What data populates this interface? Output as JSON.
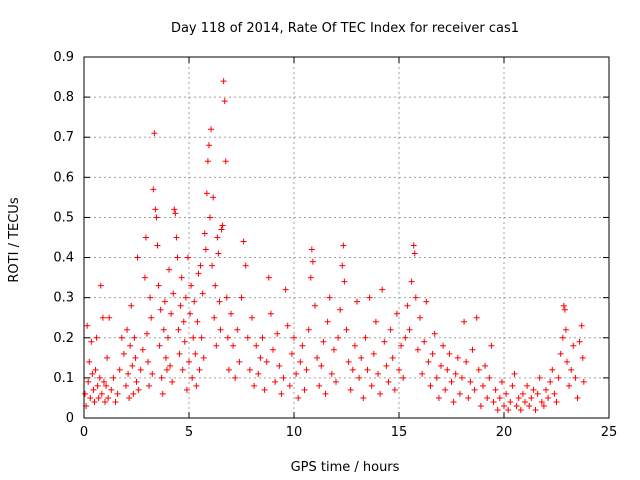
{
  "chart_data": {
    "type": "scatter",
    "title": "Day 118 of 2014, Rate Of TEC Index for receiver cas1",
    "xlabel": "GPS time / hours",
    "ylabel": "ROTI / TECUs",
    "xlim": [
      0,
      25
    ],
    "ylim": [
      0,
      0.9
    ],
    "xticks": [
      0,
      5,
      10,
      15,
      20,
      25
    ],
    "xtick_labels": [
      "0",
      "5",
      "10",
      "15",
      "20",
      "25"
    ],
    "yticks": [
      0,
      0.1,
      0.2,
      0.3,
      0.4,
      0.5,
      0.6,
      0.7,
      0.8,
      0.9
    ],
    "ytick_labels": [
      "0",
      "0.1",
      "0.2",
      "0.3",
      "0.4",
      "0.5",
      "0.6",
      "0.7",
      "0.8",
      "0.9"
    ],
    "grid": true,
    "marker": "plus",
    "series": [
      {
        "name": "ROTI",
        "color": "#ff0000",
        "points": [
          [
            0.05,
            0.06
          ],
          [
            0.1,
            0.03
          ],
          [
            0.15,
            0.23
          ],
          [
            0.2,
            0.09
          ],
          [
            0.25,
            0.14
          ],
          [
            0.3,
            0.05
          ],
          [
            0.35,
            0.19
          ],
          [
            0.4,
            0.11
          ],
          [
            0.45,
            0.07
          ],
          [
            0.5,
            0.04
          ],
          [
            0.55,
            0.12
          ],
          [
            0.6,
            0.2
          ],
          [
            0.65,
            0.08
          ],
          [
            0.7,
            0.05
          ],
          [
            0.75,
            0.1
          ],
          [
            0.8,
            0.33
          ],
          [
            0.85,
            0.06
          ],
          [
            0.9,
            0.25
          ],
          [
            0.95,
            0.09
          ],
          [
            1.0,
            0.04
          ],
          [
            1.05,
            0.08
          ],
          [
            1.1,
            0.15
          ],
          [
            1.15,
            0.05
          ],
          [
            1.2,
            0.25
          ],
          [
            1.3,
            0.07
          ],
          [
            1.4,
            0.1
          ],
          [
            1.5,
            0.04
          ],
          [
            1.6,
            0.06
          ],
          [
            1.7,
            0.12
          ],
          [
            1.8,
            0.2
          ],
          [
            1.9,
            0.16
          ],
          [
            2.0,
            0.08
          ],
          [
            2.05,
            0.22
          ],
          [
            2.1,
            0.11
          ],
          [
            2.15,
            0.05
          ],
          [
            2.2,
            0.18
          ],
          [
            2.25,
            0.28
          ],
          [
            2.3,
            0.13
          ],
          [
            2.35,
            0.06
          ],
          [
            2.4,
            0.2
          ],
          [
            2.45,
            0.15
          ],
          [
            2.5,
            0.09
          ],
          [
            2.55,
            0.4
          ],
          [
            2.6,
            0.07
          ],
          [
            2.7,
            0.12
          ],
          [
            2.8,
            0.17
          ],
          [
            2.9,
            0.35
          ],
          [
            2.95,
            0.45
          ],
          [
            3.0,
            0.21
          ],
          [
            3.05,
            0.14
          ],
          [
            3.1,
            0.08
          ],
          [
            3.15,
            0.3
          ],
          [
            3.2,
            0.25
          ],
          [
            3.25,
            0.11
          ],
          [
            3.3,
            0.57
          ],
          [
            3.35,
            0.71
          ],
          [
            3.4,
            0.52
          ],
          [
            3.45,
            0.5
          ],
          [
            3.5,
            0.43
          ],
          [
            3.55,
            0.33
          ],
          [
            3.6,
            0.18
          ],
          [
            3.65,
            0.27
          ],
          [
            3.7,
            0.1
          ],
          [
            3.75,
            0.06
          ],
          [
            3.8,
            0.22
          ],
          [
            3.85,
            0.29
          ],
          [
            3.9,
            0.15
          ],
          [
            3.95,
            0.12
          ],
          [
            4.0,
            0.2
          ],
          [
            4.05,
            0.37
          ],
          [
            4.1,
            0.13
          ],
          [
            4.15,
            0.26
          ],
          [
            4.2,
            0.09
          ],
          [
            4.25,
            0.31
          ],
          [
            4.3,
            0.52
          ],
          [
            4.35,
            0.51
          ],
          [
            4.4,
            0.45
          ],
          [
            4.45,
            0.4
          ],
          [
            4.5,
            0.22
          ],
          [
            4.55,
            0.16
          ],
          [
            4.6,
            0.28
          ],
          [
            4.65,
            0.35
          ],
          [
            4.7,
            0.12
          ],
          [
            4.75,
            0.24
          ],
          [
            4.8,
            0.19
          ],
          [
            4.85,
            0.3
          ],
          [
            4.9,
            0.07
          ],
          [
            4.95,
            0.4
          ],
          [
            5.0,
            0.14
          ],
          [
            5.05,
            0.26
          ],
          [
            5.1,
            0.33
          ],
          [
            5.15,
            0.1
          ],
          [
            5.2,
            0.2
          ],
          [
            5.25,
            0.29
          ],
          [
            5.3,
            0.16
          ],
          [
            5.35,
            0.08
          ],
          [
            5.4,
            0.24
          ],
          [
            5.45,
            0.36
          ],
          [
            5.5,
            0.12
          ],
          [
            5.55,
            0.38
          ],
          [
            5.6,
            0.2
          ],
          [
            5.65,
            0.31
          ],
          [
            5.7,
            0.15
          ],
          [
            5.75,
            0.46
          ],
          [
            5.8,
            0.42
          ],
          [
            5.85,
            0.56
          ],
          [
            5.9,
            0.64
          ],
          [
            5.95,
            0.68
          ],
          [
            6.0,
            0.5
          ],
          [
            6.05,
            0.72
          ],
          [
            6.1,
            0.38
          ],
          [
            6.15,
            0.55
          ],
          [
            6.2,
            0.25
          ],
          [
            6.25,
            0.33
          ],
          [
            6.3,
            0.18
          ],
          [
            6.35,
            0.45
          ],
          [
            6.4,
            0.41
          ],
          [
            6.45,
            0.29
          ],
          [
            6.5,
            0.22
          ],
          [
            6.55,
            0.47
          ],
          [
            6.6,
            0.48
          ],
          [
            6.65,
            0.84
          ],
          [
            6.7,
            0.79
          ],
          [
            6.75,
            0.64
          ],
          [
            6.8,
            0.3
          ],
          [
            6.85,
            0.2
          ],
          [
            6.9,
            0.12
          ],
          [
            7.0,
            0.26
          ],
          [
            7.1,
            0.18
          ],
          [
            7.2,
            0.1
          ],
          [
            7.3,
            0.22
          ],
          [
            7.4,
            0.14
          ],
          [
            7.5,
            0.3
          ],
          [
            7.6,
            0.44
          ],
          [
            7.7,
            0.38
          ],
          [
            7.8,
            0.2
          ],
          [
            7.9,
            0.12
          ],
          [
            8.0,
            0.25
          ],
          [
            8.1,
            0.08
          ],
          [
            8.2,
            0.18
          ],
          [
            8.3,
            0.11
          ],
          [
            8.4,
            0.15
          ],
          [
            8.5,
            0.2
          ],
          [
            8.6,
            0.07
          ],
          [
            8.7,
            0.14
          ],
          [
            8.8,
            0.35
          ],
          [
            8.9,
            0.26
          ],
          [
            9.0,
            0.17
          ],
          [
            9.1,
            0.09
          ],
          [
            9.2,
            0.21
          ],
          [
            9.3,
            0.13
          ],
          [
            9.4,
            0.06
          ],
          [
            9.5,
            0.1
          ],
          [
            9.6,
            0.32
          ],
          [
            9.7,
            0.23
          ],
          [
            9.8,
            0.08
          ],
          [
            9.9,
            0.16
          ],
          [
            10.0,
            0.2
          ],
          [
            10.1,
            0.11
          ],
          [
            10.2,
            0.05
          ],
          [
            10.3,
            0.14
          ],
          [
            10.4,
            0.18
          ],
          [
            10.5,
            0.07
          ],
          [
            10.6,
            0.12
          ],
          [
            10.7,
            0.22
          ],
          [
            10.8,
            0.35
          ],
          [
            10.85,
            0.42
          ],
          [
            10.9,
            0.39
          ],
          [
            11.0,
            0.28
          ],
          [
            11.1,
            0.15
          ],
          [
            11.2,
            0.08
          ],
          [
            11.3,
            0.13
          ],
          [
            11.4,
            0.19
          ],
          [
            11.5,
            0.06
          ],
          [
            11.6,
            0.24
          ],
          [
            11.7,
            0.3
          ],
          [
            11.8,
            0.11
          ],
          [
            11.9,
            0.17
          ],
          [
            12.0,
            0.09
          ],
          [
            12.1,
            0.2
          ],
          [
            12.2,
            0.27
          ],
          [
            12.3,
            0.38
          ],
          [
            12.35,
            0.43
          ],
          [
            12.4,
            0.34
          ],
          [
            12.5,
            0.22
          ],
          [
            12.6,
            0.14
          ],
          [
            12.7,
            0.07
          ],
          [
            12.8,
            0.12
          ],
          [
            12.9,
            0.18
          ],
          [
            13.0,
            0.29
          ],
          [
            13.1,
            0.1
          ],
          [
            13.2,
            0.15
          ],
          [
            13.3,
            0.05
          ],
          [
            13.4,
            0.2
          ],
          [
            13.5,
            0.12
          ],
          [
            13.6,
            0.3
          ],
          [
            13.7,
            0.08
          ],
          [
            13.8,
            0.16
          ],
          [
            13.9,
            0.24
          ],
          [
            14.0,
            0.11
          ],
          [
            14.1,
            0.06
          ],
          [
            14.2,
            0.32
          ],
          [
            14.3,
            0.19
          ],
          [
            14.4,
            0.13
          ],
          [
            14.5,
            0.09
          ],
          [
            14.6,
            0.22
          ],
          [
            14.7,
            0.15
          ],
          [
            14.8,
            0.07
          ],
          [
            14.9,
            0.26
          ],
          [
            15.0,
            0.12
          ],
          [
            15.1,
            0.18
          ],
          [
            15.2,
            0.1
          ],
          [
            15.3,
            0.2
          ],
          [
            15.4,
            0.28
          ],
          [
            15.5,
            0.22
          ],
          [
            15.6,
            0.34
          ],
          [
            15.7,
            0.43
          ],
          [
            15.75,
            0.41
          ],
          [
            15.8,
            0.3
          ],
          [
            15.9,
            0.17
          ],
          [
            16.0,
            0.25
          ],
          [
            16.1,
            0.11
          ],
          [
            16.2,
            0.19
          ],
          [
            16.3,
            0.29
          ],
          [
            16.4,
            0.14
          ],
          [
            16.5,
            0.08
          ],
          [
            16.6,
            0.16
          ],
          [
            16.7,
            0.21
          ],
          [
            16.8,
            0.1
          ],
          [
            16.9,
            0.05
          ],
          [
            17.0,
            0.13
          ],
          [
            17.1,
            0.18
          ],
          [
            17.2,
            0.07
          ],
          [
            17.3,
            0.12
          ],
          [
            17.4,
            0.16
          ],
          [
            17.5,
            0.09
          ],
          [
            17.6,
            0.04
          ],
          [
            17.7,
            0.11
          ],
          [
            17.8,
            0.15
          ],
          [
            17.9,
            0.06
          ],
          [
            18.0,
            0.1
          ],
          [
            18.1,
            0.24
          ],
          [
            18.2,
            0.14
          ],
          [
            18.3,
            0.05
          ],
          [
            18.4,
            0.09
          ],
          [
            18.5,
            0.17
          ],
          [
            18.6,
            0.07
          ],
          [
            18.7,
            0.25
          ],
          [
            18.8,
            0.12
          ],
          [
            18.9,
            0.03
          ],
          [
            19.0,
            0.08
          ],
          [
            19.1,
            0.13
          ],
          [
            19.2,
            0.05
          ],
          [
            19.3,
            0.1
          ],
          [
            19.4,
            0.18
          ],
          [
            19.5,
            0.04
          ],
          [
            19.6,
            0.07
          ],
          [
            19.7,
            0.02
          ],
          [
            19.8,
            0.05
          ],
          [
            19.9,
            0.09
          ],
          [
            20.0,
            0.03
          ],
          [
            20.1,
            0.06
          ],
          [
            20.2,
            0.02
          ],
          [
            20.3,
            0.04
          ],
          [
            20.4,
            0.08
          ],
          [
            20.5,
            0.11
          ],
          [
            20.6,
            0.03
          ],
          [
            20.7,
            0.05
          ],
          [
            20.8,
            0.02
          ],
          [
            20.9,
            0.06
          ],
          [
            21.0,
            0.04
          ],
          [
            21.1,
            0.08
          ],
          [
            21.2,
            0.03
          ],
          [
            21.3,
            0.05
          ],
          [
            21.4,
            0.07
          ],
          [
            21.5,
            0.02
          ],
          [
            21.6,
            0.06
          ],
          [
            21.7,
            0.1
          ],
          [
            21.8,
            0.04
          ],
          [
            21.9,
            0.03
          ],
          [
            22.0,
            0.07
          ],
          [
            22.1,
            0.05
          ],
          [
            22.2,
            0.09
          ],
          [
            22.3,
            0.12
          ],
          [
            22.4,
            0.06
          ],
          [
            22.5,
            0.04
          ],
          [
            22.6,
            0.1
          ],
          [
            22.7,
            0.16
          ],
          [
            22.8,
            0.2
          ],
          [
            22.85,
            0.28
          ],
          [
            22.9,
            0.27
          ],
          [
            22.95,
            0.22
          ],
          [
            23.0,
            0.14
          ],
          [
            23.1,
            0.08
          ],
          [
            23.2,
            0.12
          ],
          [
            23.3,
            0.18
          ],
          [
            23.4,
            0.1
          ],
          [
            23.5,
            0.05
          ],
          [
            23.6,
            0.19
          ],
          [
            23.7,
            0.23
          ],
          [
            23.75,
            0.15
          ],
          [
            23.8,
            0.09
          ]
        ]
      }
    ]
  }
}
